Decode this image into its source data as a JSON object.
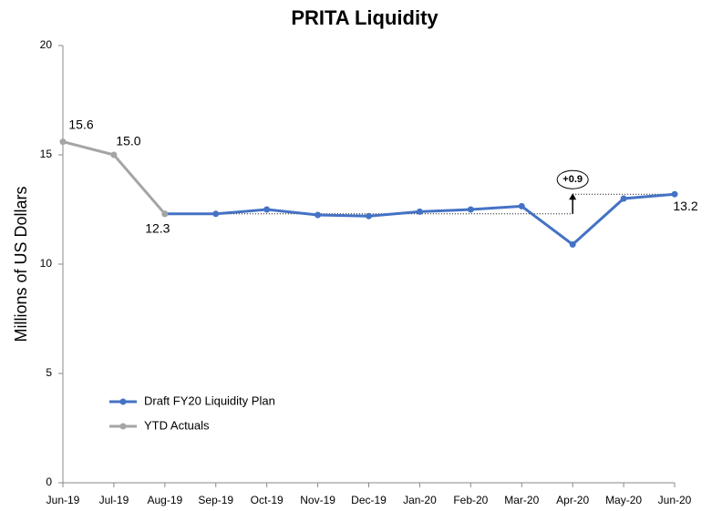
{
  "chart_data": {
    "type": "line",
    "title": "PRITA Liquidity",
    "y_label": "Millions of US Dollars",
    "categories": [
      "Jun-19",
      "Jul-19",
      "Aug-19",
      "Sep-19",
      "Oct-19",
      "Nov-19",
      "Dec-19",
      "Jan-20",
      "Feb-20",
      "Mar-20",
      "Apr-20",
      "May-20",
      "Jun-20"
    ],
    "series": [
      {
        "name": "Draft FY20 Liquidity Plan",
        "color": "#4472c4",
        "values": [
          null,
          null,
          12.3,
          12.3,
          12.5,
          12.25,
          12.2,
          12.4,
          12.5,
          12.65,
          10.9,
          13.0,
          13.2
        ],
        "value_labels": [
          null,
          null,
          null,
          null,
          null,
          null,
          null,
          null,
          null,
          null,
          null,
          null,
          "13.2"
        ]
      },
      {
        "name": "YTD Actuals",
        "color": "#a5a5a5",
        "values": [
          15.6,
          15.0,
          12.3,
          null,
          null,
          null,
          null,
          null,
          null,
          null,
          null,
          null,
          null
        ],
        "value_labels": [
          "15.6",
          "15.0",
          "12.3",
          null,
          null,
          null,
          null,
          null,
          null,
          null,
          null,
          null,
          null
        ]
      }
    ],
    "annotation": "+0.9",
    "ylim": [
      0,
      20
    ],
    "yticks": [
      0,
      5,
      10,
      15,
      20
    ],
    "legend": "lower left"
  }
}
